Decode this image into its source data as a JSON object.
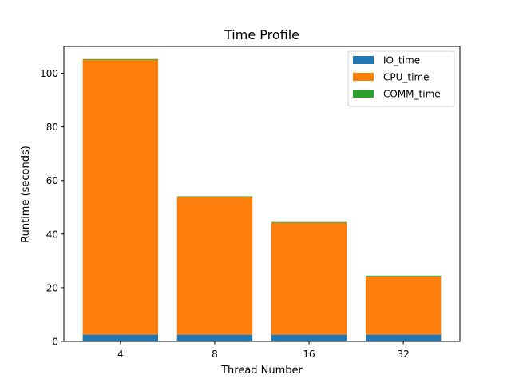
{
  "chart_data": {
    "type": "bar",
    "stacked": true,
    "title": "Time Profile",
    "xlabel": "Thread Number",
    "ylabel": "Runtime (seconds)",
    "categories": [
      "4",
      "8",
      "16",
      "32"
    ],
    "series": [
      {
        "name": "IO_time",
        "values": [
          2.5,
          2.5,
          2.5,
          2.5
        ],
        "color": "#1f77b4"
      },
      {
        "name": "CPU_time",
        "values": [
          102.5,
          51.3,
          41.7,
          21.7
        ],
        "color": "#ff7f0e"
      },
      {
        "name": "COMM_time",
        "values": [
          0.3,
          0.3,
          0.3,
          0.3
        ],
        "color": "#2ca02c"
      }
    ],
    "ylim": [
      0,
      110
    ],
    "yticks": [
      0,
      20,
      40,
      60,
      80,
      100
    ],
    "grid": false,
    "legend_position": "top-right"
  }
}
